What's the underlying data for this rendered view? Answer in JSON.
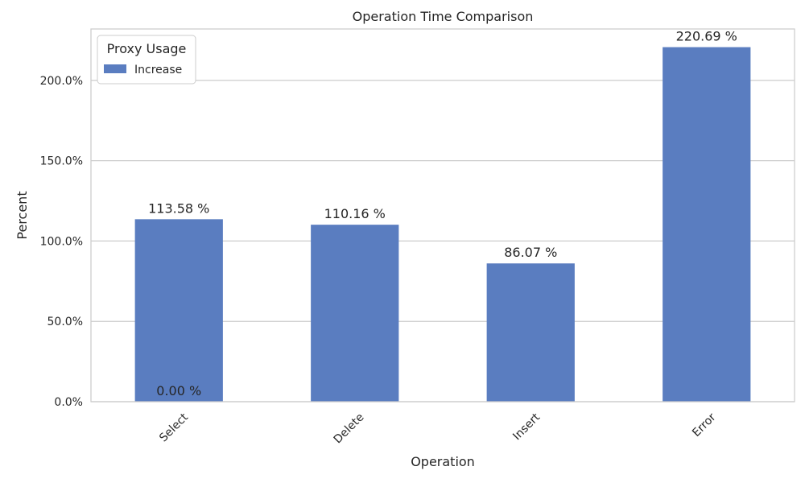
{
  "chart_data": {
    "type": "bar",
    "title": "Operation Time Comparison",
    "xlabel": "Operation",
    "ylabel": "Percent",
    "categories": [
      "Select",
      "Delete",
      "Insert",
      "Error"
    ],
    "series": [
      {
        "name": "Increase",
        "values": [
          113.58,
          110.16,
          86.07,
          220.69
        ],
        "color": "#5a7dc0"
      }
    ],
    "data_labels": [
      "113.58 %",
      "110.16 %",
      "86.07 %",
      "220.69 %"
    ],
    "extra_label": {
      "category": "Select",
      "text": "0.00 %",
      "value": 0
    },
    "ylim": [
      0,
      232
    ],
    "yticks": [
      0,
      50,
      100,
      150,
      200
    ],
    "ytick_labels": [
      "0.0%",
      "50.0%",
      "100.0%",
      "150.0%",
      "200.0%"
    ],
    "grid": true,
    "legend": {
      "title": "Proxy Usage",
      "placement": "top-left"
    }
  }
}
